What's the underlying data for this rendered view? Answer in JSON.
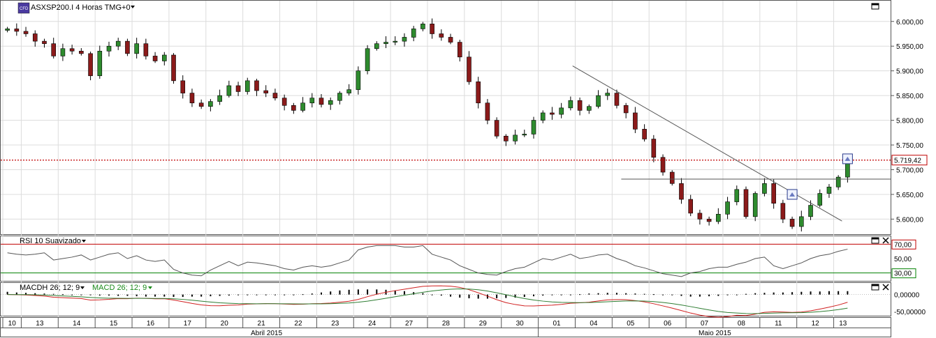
{
  "header": {
    "symbol_label": "ASXSP200.I 4 Horas TMG+0",
    "badge": "CFD"
  },
  "price_axis": {
    "ticks": [
      {
        "v": 6000,
        "label": "6.000,00"
      },
      {
        "v": 5950,
        "label": "5.950,00"
      },
      {
        "v": 5900,
        "label": "5.900,00"
      },
      {
        "v": 5850,
        "label": "5.850,00"
      },
      {
        "v": 5800,
        "label": "5.800,00"
      },
      {
        "v": 5750,
        "label": "5.750,00"
      },
      {
        "v": 5700,
        "label": "5.700,00"
      },
      {
        "v": 5650,
        "label": "5.650,00"
      },
      {
        "v": 5600,
        "label": "5.600,00"
      }
    ],
    "current_price": 5719.42,
    "current_price_label": "5.719,42",
    "range": [
      5578,
      6018
    ]
  },
  "rsi": {
    "title": "RSI 10 Suavizado",
    "levels": [
      {
        "v": 70,
        "label": "70,00"
      },
      {
        "v": 50,
        "label": "50,00"
      },
      {
        "v": 30,
        "label": "30,00"
      }
    ],
    "range": [
      20,
      80
    ]
  },
  "macd": {
    "title_hist": "MACDH 26; 12; 9",
    "title_macd": "MACD 26; 12; 9",
    "ticks": [
      {
        "v": 0,
        "label": "0,00000"
      },
      {
        "v": -50,
        "label": "-50,00000"
      }
    ],
    "range": [
      -60,
      32
    ]
  },
  "time_axis": {
    "days": [
      "10",
      "13",
      "14",
      "15",
      "16",
      "17",
      "20",
      "21",
      "22",
      "23",
      "24",
      "27",
      "28",
      "29",
      "30",
      "01",
      "04",
      "05",
      "06",
      "07",
      "08",
      "11",
      "12",
      "13"
    ],
    "months": [
      "Abril 2015",
      "Maio 2015"
    ]
  },
  "colors": {
    "bull": "#2e8b2e",
    "bear": "#8b1a1a",
    "rsi_line": "#555555",
    "level_high": "#c00000",
    "level_low": "#008000",
    "macd_line": "#d02020",
    "signal_line": "#2e7d32",
    "hist": "#000000",
    "price_line": "#c00000",
    "green_text": "#1a8a1a"
  },
  "chart_data": [
    {
      "type": "candlestick",
      "title": "ASXSP200.I 4 Horas TMG+0",
      "x": [
        "10",
        "10",
        "13",
        "13",
        "13",
        "13",
        "14",
        "14",
        "14",
        "14",
        "15",
        "15",
        "15",
        "15",
        "16",
        "16",
        "16",
        "16",
        "17",
        "17",
        "17",
        "17",
        "20",
        "20",
        "20",
        "20",
        "21",
        "21",
        "21",
        "21",
        "22",
        "22",
        "22",
        "22",
        "23",
        "23",
        "23",
        "23",
        "24",
        "24",
        "24",
        "24",
        "27",
        "27",
        "27",
        "27",
        "28",
        "28",
        "28",
        "28",
        "29",
        "29",
        "29",
        "29",
        "30",
        "30",
        "30",
        "30",
        "01",
        "01",
        "01",
        "01",
        "04",
        "04",
        "04",
        "04",
        "05",
        "05",
        "05",
        "05",
        "06",
        "06",
        "06",
        "06",
        "07",
        "07",
        "07",
        "07",
        "08",
        "08",
        "08",
        "08",
        "11",
        "11",
        "11",
        "11",
        "12",
        "12",
        "12",
        "12",
        "13",
        "13"
      ],
      "close": [
        5985,
        5980,
        5975,
        5960,
        5955,
        5930,
        5945,
        5940,
        5935,
        5890,
        5940,
        5950,
        5960,
        5935,
        5955,
        5930,
        5920,
        5932,
        5880,
        5855,
        5835,
        5828,
        5838,
        5850,
        5870,
        5858,
        5880,
        5860,
        5855,
        5845,
        5830,
        5820,
        5835,
        5845,
        5832,
        5840,
        5855,
        5862,
        5900,
        5945,
        5955,
        5958,
        5960,
        5968,
        5985,
        5995,
        5975,
        5968,
        5958,
        5928,
        5878,
        5835,
        5800,
        5768,
        5758,
        5770,
        5772,
        5800,
        5815,
        5812,
        5825,
        5840,
        5820,
        5828,
        5850,
        5855,
        5830,
        5815,
        5782,
        5762,
        5725,
        5695,
        5672,
        5640,
        5612,
        5600,
        5595,
        5610,
        5635,
        5660,
        5605,
        5652,
        5672,
        5632,
        5600,
        5585,
        5605,
        5628,
        5652,
        5665,
        5685,
        5719
      ],
      "ylim": [
        5578,
        6018
      ],
      "annotations": [
        "5.719,42"
      ]
    },
    {
      "type": "line",
      "title": "RSI 10 Suavizado",
      "series": [
        {
          "values": [
            58,
            56,
            55,
            56,
            58,
            48,
            50,
            52,
            55,
            48,
            52,
            56,
            58,
            50,
            54,
            48,
            46,
            48,
            35,
            30,
            27,
            26,
            34,
            40,
            46,
            40,
            45,
            44,
            42,
            40,
            36,
            34,
            38,
            40,
            38,
            40,
            44,
            48,
            62,
            66,
            68,
            68,
            68,
            66,
            66,
            68,
            56,
            52,
            48,
            40,
            35,
            30,
            28,
            27,
            32,
            36,
            38,
            44,
            50,
            48,
            52,
            56,
            50,
            52,
            55,
            56,
            50,
            46,
            40,
            37,
            33,
            29,
            27,
            25,
            30,
            32,
            36,
            38,
            38,
            42,
            45,
            50,
            52,
            40,
            36,
            40,
            44,
            50,
            54,
            56,
            60,
            63
          ]
        }
      ],
      "ylim": [
        20,
        80
      ]
    },
    {
      "type": "line",
      "title": "MACDH 26; 12; 9",
      "series": [
        {
          "values": [
            8,
            6,
            5,
            4,
            3,
            2,
            1,
            0,
            -1,
            -2,
            -3,
            -3,
            -4,
            -4,
            -5,
            -6,
            -6,
            -6,
            -7,
            -7,
            -6,
            -6,
            -5,
            -4,
            -3,
            -2,
            -2,
            -2,
            -1,
            -1,
            -1,
            0,
            1,
            3,
            6,
            9,
            12,
            14,
            15,
            15,
            15,
            14,
            12,
            10,
            7,
            4,
            0,
            -3,
            -6,
            -9,
            -11,
            -12,
            -12,
            -11,
            -10,
            -9,
            -7,
            -5,
            -3,
            -2,
            -1,
            0,
            1,
            3,
            4,
            5,
            5,
            4,
            3,
            2,
            1,
            0,
            -2,
            -4,
            -6,
            -6,
            -5,
            -4,
            -2,
            0,
            2,
            4,
            5,
            6,
            6,
            7,
            8,
            9,
            9,
            10,
            10,
            10
          ]
        }
      ],
      "ylim": [
        -60,
        32
      ]
    }
  ]
}
